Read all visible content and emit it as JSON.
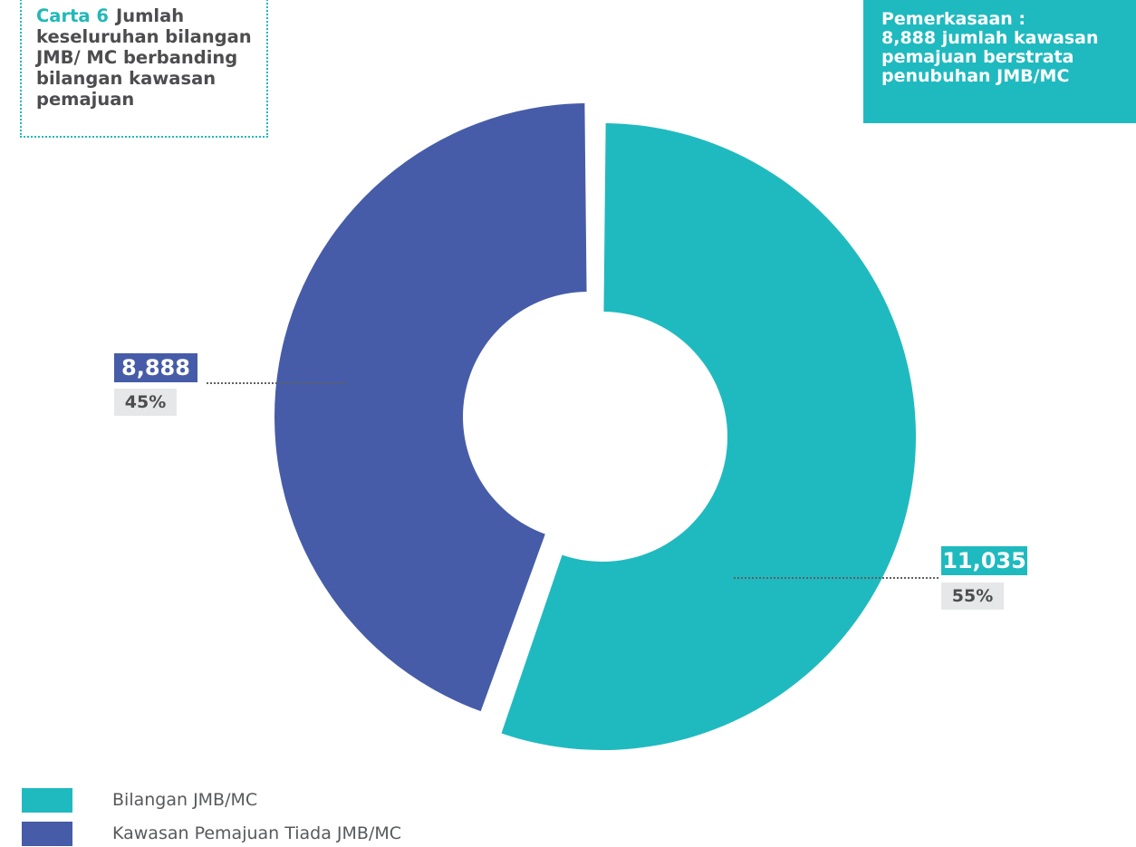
{
  "header": {
    "chart_number": "Carta 6",
    "chart_title": "Jumlah keseluruhan bilangan JMB/ MC berbanding bilangan kawasan pemajuan"
  },
  "note": {
    "lines": [
      "Pemerkasaan :",
      "8,888 jumlah kawasan",
      "pemajuan berstrata",
      "penubuhan JMB/MC"
    ]
  },
  "colors": {
    "teal": "#1fbabf",
    "navy": "#465ca8",
    "label_bg": "#e6e7e8",
    "text": "#4d4d4f"
  },
  "chart_data": {
    "type": "pie",
    "variant": "donut",
    "slices": [
      {
        "label": "Bilangan JMB/MC",
        "value": 11035,
        "display_value": "11,035",
        "percent": "55%",
        "color": "#1fbabf"
      },
      {
        "label": "Kawasan Pemajuan Tiada JMB/MC",
        "value": 8888,
        "display_value": "8,888",
        "percent": "45%",
        "color": "#465ca8"
      }
    ],
    "legend": [
      "Bilangan JMB/MC",
      "Kawasan Pemajuan Tiada JMB/MC"
    ],
    "legend_position": "bottom-left"
  }
}
